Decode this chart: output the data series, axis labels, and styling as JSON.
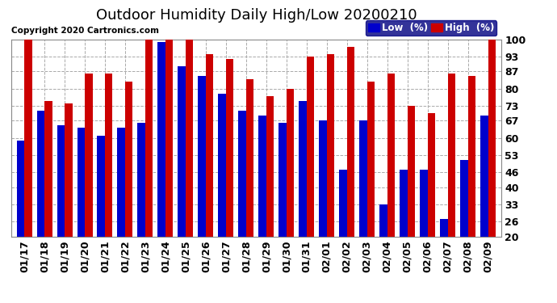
{
  "title": "Outdoor Humidity Daily High/Low 20200210",
  "copyright": "Copyright 2020 Cartronics.com",
  "legend_low": "Low  (%)",
  "legend_high": "High  (%)",
  "dates": [
    "01/17",
    "01/18",
    "01/19",
    "01/20",
    "01/21",
    "01/22",
    "01/23",
    "01/24",
    "01/25",
    "01/26",
    "01/27",
    "01/28",
    "01/29",
    "01/30",
    "01/31",
    "02/01",
    "02/02",
    "02/03",
    "02/04",
    "02/05",
    "02/06",
    "02/07",
    "02/08",
    "02/09"
  ],
  "low": [
    59,
    71,
    65,
    64,
    61,
    64,
    66,
    99,
    89,
    85,
    78,
    71,
    69,
    66,
    75,
    67,
    47,
    67,
    33,
    47,
    47,
    27,
    51,
    69
  ],
  "high": [
    100,
    75,
    74,
    86,
    86,
    83,
    100,
    100,
    100,
    94,
    92,
    84,
    77,
    80,
    93,
    94,
    97,
    83,
    86,
    73,
    70,
    86,
    85,
    100
  ],
  "ylim": [
    20,
    100
  ],
  "yticks": [
    20,
    26,
    33,
    40,
    46,
    53,
    60,
    67,
    73,
    80,
    87,
    93,
    100
  ],
  "bar_width": 0.38,
  "low_color": "#0000cc",
  "high_color": "#cc0000",
  "bg_color": "#ffffff",
  "grid_color": "#aaaaaa",
  "title_fontsize": 13,
  "axis_fontsize": 9,
  "legend_fontsize": 8.5,
  "copyright_fontsize": 7.5
}
